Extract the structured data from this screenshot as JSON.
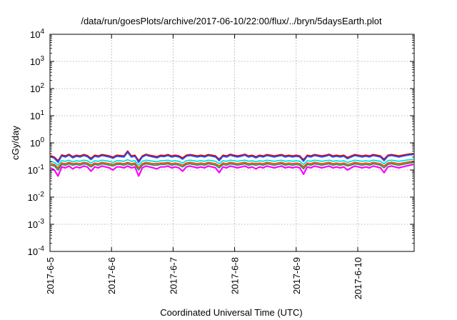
{
  "chart_data": {
    "type": "line",
    "title": "/data/run/goesPlots/archive/2017-06-10/22:00/flux/../bryn/5daysEarth.plot",
    "xlabel": "Coordinated Universal Time (UTC)",
    "ylabel": "cGy/day",
    "yscale": "log",
    "ylim": [
      0.0001,
      10000
    ],
    "y_ticks": [
      {
        "value": 0.0001,
        "base": "10",
        "exp": "-4"
      },
      {
        "value": 0.001,
        "base": "10",
        "exp": "-3"
      },
      {
        "value": 0.01,
        "base": "10",
        "exp": "-2"
      },
      {
        "value": 0.1,
        "base": "10",
        "exp": "-1"
      },
      {
        "value": 1,
        "base": "10",
        "exp": "0"
      },
      {
        "value": 10,
        "base": "10",
        "exp": "1"
      },
      {
        "value": 100,
        "base": "10",
        "exp": "2"
      },
      {
        "value": 1000,
        "base": "10",
        "exp": "3"
      },
      {
        "value": 10000,
        "base": "10",
        "exp": "4"
      }
    ],
    "xlim": [
      "2017-06-05",
      "2017-06-10 22:00"
    ],
    "x_ticks": [
      {
        "value": "2017-06-05",
        "label": "2017-6-5"
      },
      {
        "value": "2017-06-06",
        "label": "2017-6-6"
      },
      {
        "value": "2017-06-07",
        "label": "2017-6-7"
      },
      {
        "value": "2017-06-08",
        "label": "2017-6-8"
      },
      {
        "value": "2017-06-09",
        "label": "2017-6-9"
      },
      {
        "value": "2017-06-10",
        "label": "2017-6-10"
      }
    ],
    "grid": true,
    "series": [
      {
        "color": "#ff00ff",
        "approx_level": 0.13,
        "values": [
          0.12,
          0.1,
          0.06,
          0.13,
          0.12,
          0.14,
          0.11,
          0.13,
          0.12,
          0.14,
          0.13,
          0.09,
          0.13,
          0.12,
          0.14,
          0.13,
          0.12,
          0.1,
          0.13,
          0.13,
          0.12,
          0.14,
          0.12,
          0.13,
          0.06,
          0.12,
          0.14,
          0.13,
          0.12,
          0.11,
          0.13,
          0.13,
          0.14,
          0.12,
          0.13,
          0.12,
          0.09,
          0.13,
          0.14,
          0.13,
          0.12,
          0.13,
          0.12,
          0.14,
          0.13,
          0.12,
          0.08,
          0.13,
          0.12,
          0.14,
          0.13,
          0.12,
          0.13,
          0.14,
          0.12,
          0.13,
          0.11,
          0.13,
          0.12,
          0.14,
          0.13,
          0.12,
          0.13,
          0.14,
          0.12,
          0.13,
          0.12,
          0.13,
          0.12,
          0.07,
          0.13,
          0.12,
          0.14,
          0.13,
          0.12,
          0.13,
          0.14,
          0.12,
          0.13,
          0.12,
          0.13,
          0.1,
          0.12,
          0.14,
          0.13,
          0.12,
          0.13,
          0.12,
          0.14,
          0.13,
          0.12,
          0.08,
          0.13,
          0.14,
          0.13,
          0.12,
          0.13,
          0.14,
          0.15,
          0.16
        ]
      },
      {
        "color": "#2e8b57",
        "approx_level": 0.16,
        "values": [
          0.15,
          0.14,
          0.1,
          0.16,
          0.15,
          0.17,
          0.15,
          0.16,
          0.15,
          0.17,
          0.16,
          0.13,
          0.16,
          0.15,
          0.17,
          0.16,
          0.15,
          0.14,
          0.16,
          0.16,
          0.15,
          0.17,
          0.15,
          0.16,
          0.1,
          0.15,
          0.17,
          0.16,
          0.15,
          0.15,
          0.16,
          0.16,
          0.17,
          0.15,
          0.16,
          0.15,
          0.13,
          0.16,
          0.17,
          0.16,
          0.15,
          0.16,
          0.15,
          0.17,
          0.16,
          0.15,
          0.12,
          0.16,
          0.15,
          0.17,
          0.16,
          0.15,
          0.16,
          0.17,
          0.15,
          0.16,
          0.15,
          0.16,
          0.15,
          0.17,
          0.16,
          0.15,
          0.16,
          0.17,
          0.15,
          0.16,
          0.15,
          0.16,
          0.15,
          0.11,
          0.16,
          0.15,
          0.17,
          0.16,
          0.15,
          0.16,
          0.17,
          0.15,
          0.16,
          0.15,
          0.16,
          0.14,
          0.15,
          0.17,
          0.16,
          0.15,
          0.16,
          0.15,
          0.17,
          0.16,
          0.15,
          0.12,
          0.16,
          0.17,
          0.16,
          0.15,
          0.16,
          0.17,
          0.18,
          0.19
        ]
      },
      {
        "color": "#ff4500",
        "approx_level": 0.18,
        "values": [
          0.17,
          0.16,
          0.12,
          0.18,
          0.17,
          0.19,
          0.17,
          0.18,
          0.17,
          0.19,
          0.18,
          0.15,
          0.18,
          0.17,
          0.19,
          0.18,
          0.17,
          0.16,
          0.18,
          0.18,
          0.17,
          0.19,
          0.17,
          0.18,
          0.12,
          0.17,
          0.19,
          0.18,
          0.17,
          0.17,
          0.18,
          0.18,
          0.19,
          0.17,
          0.18,
          0.17,
          0.15,
          0.18,
          0.19,
          0.18,
          0.17,
          0.18,
          0.17,
          0.19,
          0.18,
          0.17,
          0.14,
          0.18,
          0.17,
          0.19,
          0.18,
          0.17,
          0.18,
          0.19,
          0.17,
          0.18,
          0.17,
          0.18,
          0.17,
          0.19,
          0.18,
          0.17,
          0.18,
          0.19,
          0.17,
          0.18,
          0.17,
          0.18,
          0.17,
          0.13,
          0.18,
          0.17,
          0.19,
          0.18,
          0.17,
          0.18,
          0.19,
          0.17,
          0.18,
          0.17,
          0.18,
          0.16,
          0.17,
          0.19,
          0.18,
          0.17,
          0.18,
          0.17,
          0.19,
          0.18,
          0.17,
          0.14,
          0.18,
          0.19,
          0.18,
          0.17,
          0.18,
          0.19,
          0.2,
          0.21
        ]
      },
      {
        "color": "#00e5e5",
        "approx_level": 0.22,
        "values": [
          0.21,
          0.19,
          0.15,
          0.22,
          0.21,
          0.23,
          0.2,
          0.22,
          0.21,
          0.23,
          0.22,
          0.18,
          0.22,
          0.21,
          0.23,
          0.22,
          0.21,
          0.19,
          0.22,
          0.22,
          0.21,
          0.24,
          0.21,
          0.22,
          0.15,
          0.21,
          0.23,
          0.22,
          0.21,
          0.2,
          0.22,
          0.22,
          0.23,
          0.21,
          0.22,
          0.21,
          0.18,
          0.22,
          0.23,
          0.22,
          0.21,
          0.22,
          0.21,
          0.23,
          0.22,
          0.21,
          0.17,
          0.22,
          0.21,
          0.23,
          0.22,
          0.21,
          0.22,
          0.23,
          0.21,
          0.22,
          0.2,
          0.22,
          0.21,
          0.23,
          0.22,
          0.21,
          0.22,
          0.23,
          0.21,
          0.22,
          0.21,
          0.22,
          0.21,
          0.16,
          0.22,
          0.21,
          0.23,
          0.22,
          0.21,
          0.22,
          0.23,
          0.21,
          0.22,
          0.21,
          0.22,
          0.19,
          0.21,
          0.23,
          0.22,
          0.21,
          0.22,
          0.21,
          0.23,
          0.22,
          0.21,
          0.17,
          0.22,
          0.23,
          0.22,
          0.21,
          0.22,
          0.23,
          0.24,
          0.25
        ]
      },
      {
        "color": "#dd0000",
        "approx_level": 0.32,
        "values": [
          0.34,
          0.3,
          0.22,
          0.36,
          0.33,
          0.38,
          0.31,
          0.35,
          0.33,
          0.37,
          0.34,
          0.27,
          0.35,
          0.33,
          0.37,
          0.35,
          0.33,
          0.3,
          0.35,
          0.34,
          0.33,
          0.5,
          0.33,
          0.35,
          0.22,
          0.33,
          0.38,
          0.35,
          0.33,
          0.31,
          0.35,
          0.34,
          0.37,
          0.33,
          0.35,
          0.33,
          0.28,
          0.35,
          0.37,
          0.35,
          0.33,
          0.35,
          0.33,
          0.37,
          0.35,
          0.33,
          0.25,
          0.35,
          0.33,
          0.38,
          0.35,
          0.33,
          0.35,
          0.38,
          0.33,
          0.35,
          0.31,
          0.35,
          0.33,
          0.37,
          0.35,
          0.33,
          0.35,
          0.37,
          0.33,
          0.35,
          0.33,
          0.35,
          0.33,
          0.24,
          0.35,
          0.33,
          0.37,
          0.35,
          0.33,
          0.35,
          0.38,
          0.33,
          0.35,
          0.33,
          0.35,
          0.29,
          0.33,
          0.37,
          0.35,
          0.33,
          0.35,
          0.33,
          0.37,
          0.35,
          0.33,
          0.25,
          0.35,
          0.37,
          0.35,
          0.33,
          0.35,
          0.37,
          0.39,
          0.4
        ]
      },
      {
        "color": "#2050ff",
        "approx_level": 0.3,
        "values": [
          0.31,
          0.27,
          0.19,
          0.33,
          0.3,
          0.35,
          0.28,
          0.32,
          0.3,
          0.34,
          0.31,
          0.24,
          0.32,
          0.3,
          0.34,
          0.32,
          0.3,
          0.27,
          0.32,
          0.31,
          0.3,
          0.45,
          0.3,
          0.32,
          0.19,
          0.3,
          0.35,
          0.32,
          0.3,
          0.28,
          0.32,
          0.31,
          0.34,
          0.3,
          0.32,
          0.3,
          0.25,
          0.32,
          0.34,
          0.32,
          0.3,
          0.32,
          0.3,
          0.34,
          0.32,
          0.3,
          0.22,
          0.32,
          0.3,
          0.35,
          0.32,
          0.3,
          0.32,
          0.35,
          0.3,
          0.32,
          0.28,
          0.32,
          0.3,
          0.34,
          0.32,
          0.3,
          0.32,
          0.34,
          0.3,
          0.32,
          0.3,
          0.32,
          0.3,
          0.21,
          0.32,
          0.3,
          0.34,
          0.32,
          0.3,
          0.32,
          0.35,
          0.3,
          0.32,
          0.3,
          0.32,
          0.26,
          0.3,
          0.34,
          0.32,
          0.3,
          0.32,
          0.3,
          0.34,
          0.32,
          0.3,
          0.22,
          0.32,
          0.34,
          0.32,
          0.3,
          0.32,
          0.34,
          0.36,
          0.37
        ]
      }
    ]
  }
}
